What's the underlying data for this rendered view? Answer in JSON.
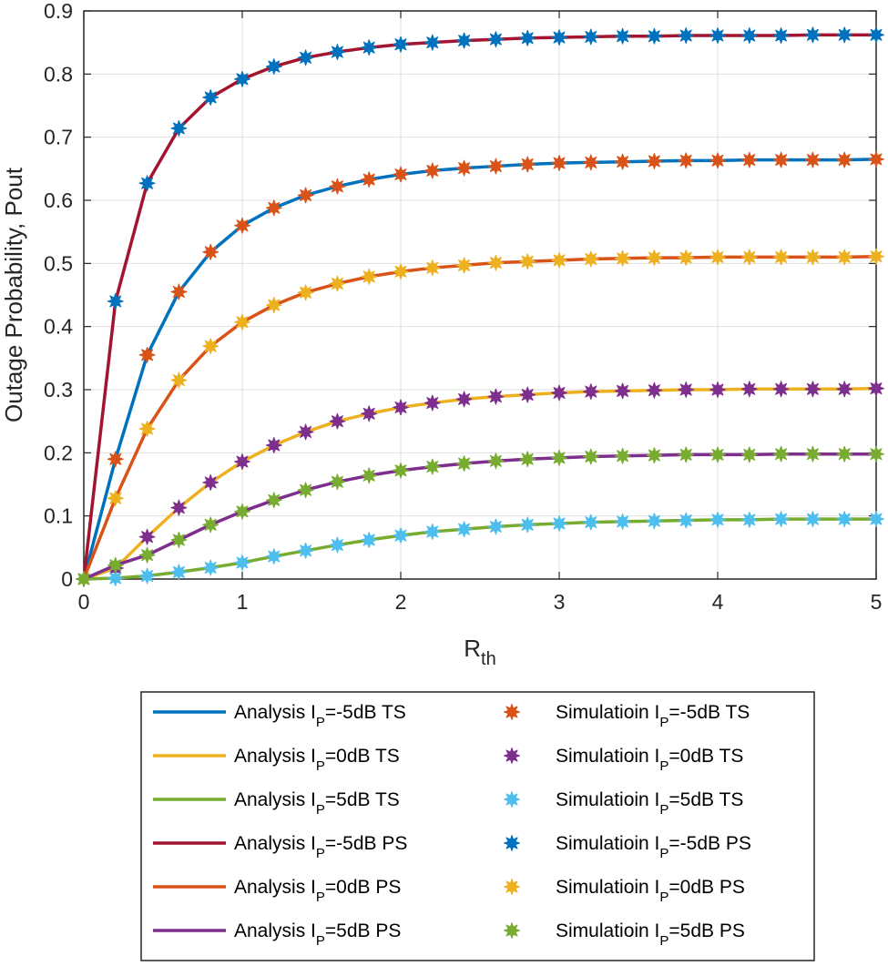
{
  "chart_data": {
    "type": "line",
    "xlabel": "R",
    "xlabel_sub": "th",
    "ylabel": "Outage Probability, Pout",
    "xlim": [
      0,
      5
    ],
    "ylim": [
      0,
      0.9
    ],
    "xticks": [
      0,
      1,
      2,
      3,
      4,
      5
    ],
    "xtick_labels": [
      "0",
      "1",
      "2",
      "3",
      "4",
      "5"
    ],
    "yticks": [
      0,
      0.1,
      0.2,
      0.3,
      0.4,
      0.5,
      0.6,
      0.7,
      0.8,
      0.9
    ],
    "ytick_labels": [
      "0",
      "0.1",
      "0.2",
      "0.3",
      "0.4",
      "0.5",
      "0.6",
      "0.7",
      "0.8",
      "0.9"
    ],
    "grid": true,
    "legend_position": "below",
    "x": [
      0,
      0.2,
      0.4,
      0.6,
      0.8,
      1.0,
      1.2,
      1.4,
      1.6,
      1.8,
      2.0,
      2.2,
      2.4,
      2.6,
      2.8,
      3.0,
      3.2,
      3.4,
      3.6,
      3.8,
      4.0,
      4.2,
      4.4,
      4.6,
      4.8,
      5.0
    ],
    "series": [
      {
        "key": "ts_m5",
        "kind": "line",
        "color": "#0072BD",
        "values": [
          0.0,
          0.19,
          0.355,
          0.455,
          0.518,
          0.56,
          0.588,
          0.608,
          0.622,
          0.633,
          0.641,
          0.647,
          0.651,
          0.654,
          0.657,
          0.659,
          0.66,
          0.661,
          0.662,
          0.663,
          0.663,
          0.664,
          0.664,
          0.664,
          0.664,
          0.665
        ],
        "legend_parts": [
          "Analysis  I",
          "P",
          "=-5dB  TS"
        ]
      },
      {
        "key": "ts_0",
        "kind": "line",
        "color": "#EDB120",
        "values": [
          0.0,
          0.0173,
          0.0668,
          0.113,
          0.153,
          0.186,
          0.212,
          0.233,
          0.25,
          0.262,
          0.272,
          0.279,
          0.285,
          0.289,
          0.292,
          0.295,
          0.297,
          0.298,
          0.299,
          0.3,
          0.3,
          0.301,
          0.301,
          0.301,
          0.301,
          0.302
        ],
        "legend_parts": [
          "Analysis  I",
          "P",
          "=0dB  TS"
        ]
      },
      {
        "key": "ts_5",
        "kind": "line",
        "color": "#77AC30",
        "values": [
          0.0,
          0.0014,
          0.005,
          0.011,
          0.018,
          0.026,
          0.036,
          0.045,
          0.054,
          0.062,
          0.069,
          0.075,
          0.079,
          0.083,
          0.086,
          0.088,
          0.09,
          0.091,
          0.092,
          0.093,
          0.094,
          0.094,
          0.095,
          0.095,
          0.095,
          0.095
        ],
        "legend_parts": [
          "Analysis  I",
          "P",
          "=5dB  TS"
        ]
      },
      {
        "key": "ps_m5",
        "kind": "line",
        "color": "#A2142F",
        "values": [
          0.0,
          0.44,
          0.627,
          0.714,
          0.763,
          0.792,
          0.812,
          0.826,
          0.835,
          0.842,
          0.847,
          0.85,
          0.853,
          0.855,
          0.857,
          0.858,
          0.859,
          0.86,
          0.86,
          0.861,
          0.861,
          0.861,
          0.861,
          0.862,
          0.862,
          0.862
        ],
        "legend_parts": [
          "Analysis  I",
          "P",
          "=-5dB  PS"
        ]
      },
      {
        "key": "ps_0",
        "kind": "line",
        "color": "#D95319",
        "values": [
          0.0,
          0.128,
          0.238,
          0.315,
          0.369,
          0.407,
          0.434,
          0.454,
          0.468,
          0.479,
          0.487,
          0.493,
          0.497,
          0.501,
          0.503,
          0.505,
          0.507,
          0.508,
          0.509,
          0.509,
          0.51,
          0.51,
          0.51,
          0.51,
          0.51,
          0.511
        ],
        "legend_parts": [
          "Analysis I",
          "P",
          "=0dB  PS"
        ]
      },
      {
        "key": "ps_5",
        "kind": "line",
        "color": "#7E2F8E",
        "values": [
          0.0,
          0.022,
          0.038,
          0.062,
          0.086,
          0.107,
          0.125,
          0.141,
          0.154,
          0.164,
          0.172,
          0.178,
          0.183,
          0.187,
          0.19,
          0.192,
          0.194,
          0.195,
          0.196,
          0.197,
          0.197,
          0.197,
          0.198,
          0.198,
          0.198,
          0.198
        ],
        "legend_parts": [
          "Analysis I",
          "P",
          "=5dB  PS"
        ]
      },
      {
        "key": "sim_ts_m5",
        "kind": "marker",
        "color": "#D95319",
        "ref": "ts_m5",
        "legend_parts": [
          "Simulatioin  I",
          "P",
          "=-5dB  TS"
        ]
      },
      {
        "key": "sim_ts_0",
        "kind": "marker",
        "color": "#7E2F8E",
        "ref": "ts_0",
        "legend_parts": [
          "Simulatioin  I",
          "P",
          "=0dB  TS"
        ]
      },
      {
        "key": "sim_ts_5",
        "kind": "marker",
        "color": "#4DBEEE",
        "ref": "ts_5",
        "legend_parts": [
          "Simulatioin  I",
          "P",
          "=5dB  TS"
        ]
      },
      {
        "key": "sim_ps_m5",
        "kind": "marker",
        "color": "#0072BD",
        "ref": "ps_m5",
        "legend_parts": [
          "Simulatioin  I",
          "P",
          "=-5dB  PS"
        ]
      },
      {
        "key": "sim_ps_0",
        "kind": "marker",
        "color": "#EDB120",
        "ref": "ps_0",
        "legend_parts": [
          "Simulatioin I",
          "P",
          "=0dB  PS"
        ]
      },
      {
        "key": "sim_ps_5",
        "kind": "marker",
        "color": "#77AC30",
        "ref": "ps_5",
        "legend_parts": [
          "Simulatioin  I",
          "P",
          "=5dB  PS"
        ]
      }
    ]
  }
}
